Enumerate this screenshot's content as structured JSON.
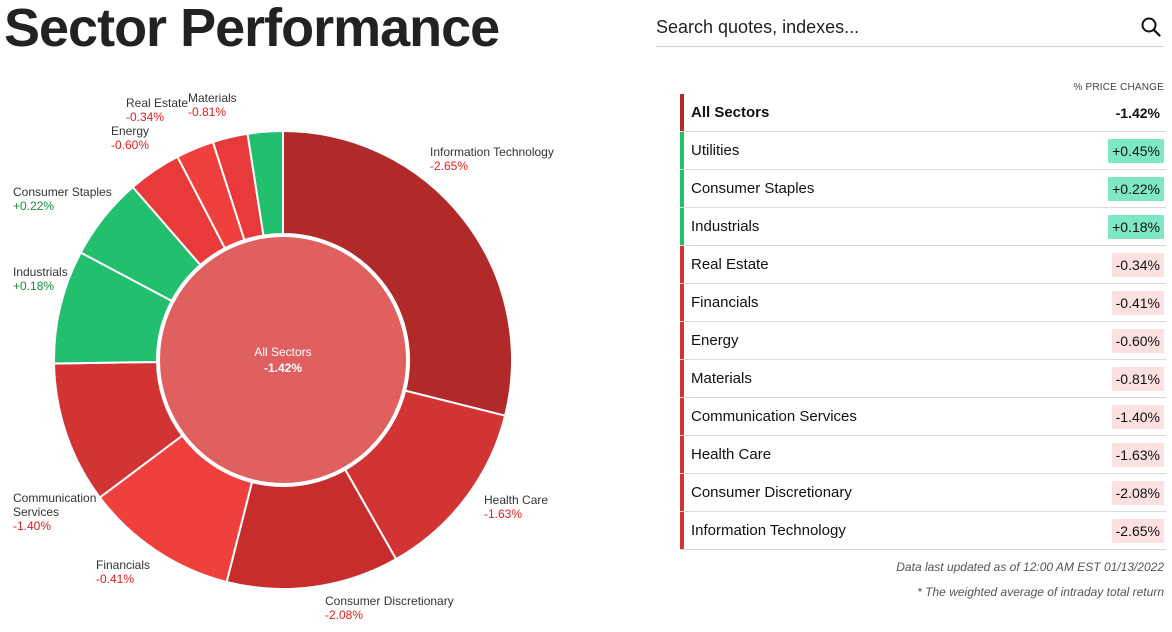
{
  "page": {
    "title": "Sector Performance"
  },
  "search": {
    "placeholder": "Search quotes, indexes..."
  },
  "table": {
    "column_header": "% PRICE CHANGE",
    "rows": [
      {
        "name": "All Sectors",
        "value": "-1.42%",
        "change": -1.42
      },
      {
        "name": "Utilities",
        "value": "+0.45%",
        "change": 0.45
      },
      {
        "name": "Consumer Staples",
        "value": "+0.22%",
        "change": 0.22
      },
      {
        "name": "Industrials",
        "value": "+0.18%",
        "change": 0.18
      },
      {
        "name": "Real Estate",
        "value": "-0.34%",
        "change": -0.34
      },
      {
        "name": "Financials",
        "value": "-0.41%",
        "change": -0.41
      },
      {
        "name": "Energy",
        "value": "-0.60%",
        "change": -0.6
      },
      {
        "name": "Materials",
        "value": "-0.81%",
        "change": -0.81
      },
      {
        "name": "Communication Services",
        "value": "-1.40%",
        "change": -1.4
      },
      {
        "name": "Health Care",
        "value": "-1.63%",
        "change": -1.63
      },
      {
        "name": "Consumer Discretionary",
        "value": "-2.08%",
        "change": -2.08
      },
      {
        "name": "Information Technology",
        "value": "-2.65%",
        "change": -2.65
      }
    ]
  },
  "footnotes": {
    "updated": "Data last updated as of 12:00 AM EST 01/13/2022",
    "weighted": "* The weighted average of intraday total return"
  },
  "colors": {
    "positive_text": "#1a8a3a",
    "negative_text": "#e02020",
    "positive_badge_bg": "#7ee8c4",
    "negative_badge_bg": "#fde0e0",
    "green_slice": "#22c06e",
    "red_dark": "#b02a2a",
    "red_mid": "#d23434",
    "red_bright": "#f0403e",
    "center_fill": "#e06060",
    "table_bar_dark": "#b02a2a",
    "table_bar_green": "#22c06e",
    "table_bar_red": "#d23434"
  },
  "chart_data": {
    "type": "pie",
    "center_label": "All Sectors",
    "center_value": "-1.42%",
    "center_change": -1.42,
    "slices": [
      {
        "name": "Information Technology",
        "change_label": "-2.65%",
        "change": -2.65,
        "share": 0.292,
        "color": "#b02a2a"
      },
      {
        "name": "Health Care",
        "change_label": "-1.63%",
        "change": -1.63,
        "share": 0.13,
        "color": "#d23434"
      },
      {
        "name": "Consumer Discretionary",
        "change_label": "-2.08%",
        "change": -2.08,
        "share": 0.123,
        "color": "#c82d2d"
      },
      {
        "name": "Financials",
        "change_label": "-0.41%",
        "change": -0.41,
        "share": 0.109,
        "color": "#f0403e"
      },
      {
        "name": "Communication Services",
        "change_label": "-1.40%",
        "change": -1.4,
        "share": 0.101,
        "color": "#d23434"
      },
      {
        "name": "Industrials",
        "change_label": "+0.18%",
        "change": 0.18,
        "share": 0.081,
        "color": "#22c06e"
      },
      {
        "name": "Consumer Staples",
        "change_label": "+0.22%",
        "change": 0.22,
        "share": 0.059,
        "color": "#22c06e"
      },
      {
        "name": "Energy",
        "change_label": "-0.60%",
        "change": -0.6,
        "share": 0.038,
        "color": "#e83a3a"
      },
      {
        "name": "Real Estate",
        "change_label": "-0.34%",
        "change": -0.34,
        "share": 0.027,
        "color": "#f0403e"
      },
      {
        "name": "Materials",
        "change_label": "-0.81%",
        "change": -0.81,
        "share": 0.025,
        "color": "#e83a3a"
      },
      {
        "name": "Utilities",
        "change_label": "+0.45%",
        "change": 0.45,
        "share": 0.025,
        "color": "#22c06e"
      }
    ]
  }
}
